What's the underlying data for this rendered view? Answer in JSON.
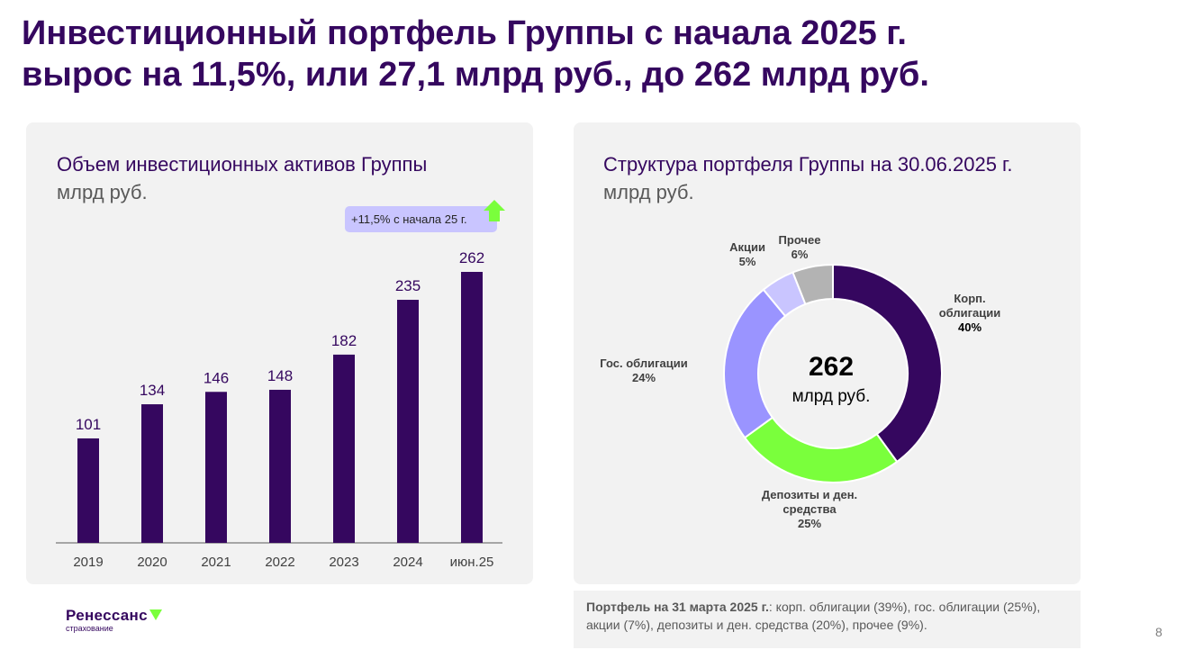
{
  "title_line1": "Инвестиционный портфель Группы с начала 2025 г.",
  "title_line2": "вырос на 11,5%, или 27,1 млрд руб., до 262 млрд руб.",
  "chart_data": [
    {
      "type": "bar",
      "title": "Объем инвестиционных активов Группы",
      "subtitle": "млрд руб.",
      "categories": [
        "2019",
        "2020",
        "2021",
        "2022",
        "2023",
        "2024",
        "июн.25"
      ],
      "values": [
        101,
        134,
        146,
        148,
        182,
        235,
        262
      ],
      "annotation": "+11,5% с начала 25 г.",
      "color": "#35075f"
    },
    {
      "type": "pie",
      "title": "Структура портфеля Группы на 30.06.2025 г.",
      "subtitle": "млрд руб.",
      "center_value": "262",
      "center_unit": "млрд руб.",
      "slices": [
        {
          "label": "Корп. облигации",
          "value": 40,
          "pct": "40%",
          "color": "#35075f"
        },
        {
          "label": "Депозиты и ден. средства",
          "value": 25,
          "pct": "25%",
          "color": "#7aff3c"
        },
        {
          "label": "Гос. облигации",
          "value": 24,
          "pct": "24%",
          "color": "#9a94ff"
        },
        {
          "label": "Акции",
          "value": 5,
          "pct": "5%",
          "color": "#c9c5ff"
        },
        {
          "label": "Прочее",
          "value": 6,
          "pct": "6%",
          "color": "#b3b3b3"
        }
      ]
    }
  ],
  "note_bold": "Портфель на 31 марта 2025 г.",
  "note_text": ": корп. облигации (39%), гос. облигации (25%), акции (7%), депозиты и ден. средства (20%), прочее (9%).",
  "logo_name": "Ренессанс",
  "logo_sub": "страхование",
  "page_number": "8"
}
